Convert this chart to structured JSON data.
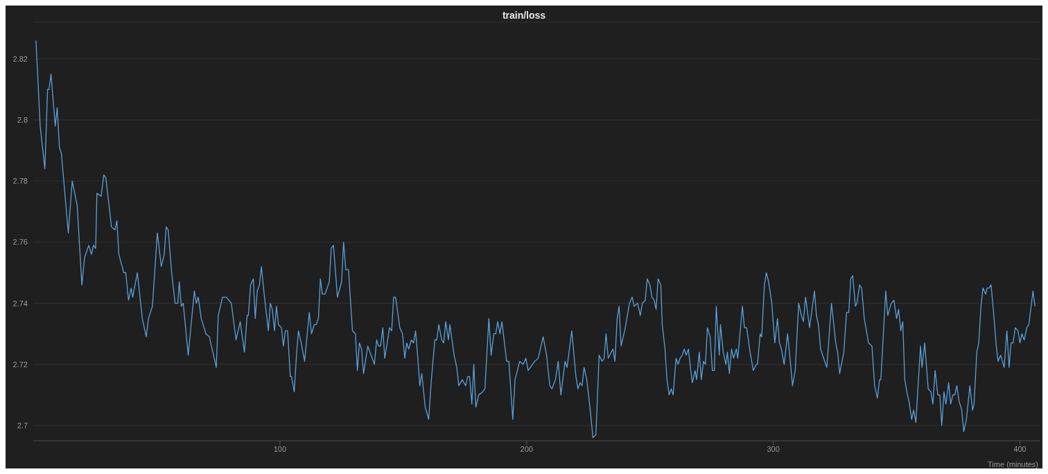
{
  "chart_data": {
    "type": "line",
    "title": "train/loss",
    "xlabel": "Time (minutes)",
    "x": [
      1.1,
      2.8,
      4.7,
      5.8,
      6.4,
      7.2,
      8.9,
      9.7,
      10.6,
      11.4,
      14.2,
      15.8,
      17.8,
      19.7,
      20.8,
      22.5,
      23.6,
      24.4,
      25.3,
      25.8,
      27.5,
      28.6,
      29.4,
      30.3,
      31.7,
      33.1,
      33.9,
      34.7,
      36.7,
      37.5,
      38.6,
      39.7,
      40.3,
      42.2,
      44.2,
      45.8,
      46.7,
      48.3,
      50.3,
      51.9,
      53.1,
      53.9,
      54.7,
      56.1,
      57.5,
      58.6,
      59.2,
      60.0,
      60.8,
      62.8,
      65.3,
      66.1,
      66.9,
      68.1,
      70.0,
      71.4,
      74.2,
      75.0,
      76.7,
      77.5,
      78.3,
      80.3,
      82.2,
      83.9,
      85.6,
      86.7,
      87.2,
      88.1,
      89.2,
      90.0,
      90.8,
      91.7,
      92.5,
      93.6,
      95.3,
      96.1,
      96.9,
      97.8,
      98.6,
      99.4,
      100.6,
      101.4,
      102.2,
      103.1,
      104.2,
      104.7,
      105.8,
      106.7,
      107.5,
      108.6,
      110.0,
      111.9,
      112.8,
      113.9,
      114.7,
      115.6,
      116.4,
      117.2,
      118.3,
      120.0,
      120.8,
      121.7,
      123.3,
      125.0,
      125.8,
      126.7,
      127.8,
      129.4,
      130.6,
      131.4,
      132.2,
      133.1,
      133.9,
      135.6,
      138.3,
      139.2,
      140.0,
      140.8,
      141.7,
      142.5,
      143.3,
      144.4,
      145.3,
      146.1,
      146.9,
      148.6,
      149.7,
      150.6,
      151.4,
      152.2,
      153.3,
      154.2,
      155.0,
      155.8,
      156.7,
      157.5,
      158.9,
      160.3,
      161.4,
      162.8,
      163.6,
      164.4,
      165.6,
      166.4,
      167.2,
      168.3,
      168.9,
      170.6,
      171.7,
      172.5,
      173.9,
      175.3,
      176.1,
      176.9,
      177.8,
      178.6,
      179.4,
      180.6,
      182.2,
      183.1,
      184.7,
      185.6,
      186.7,
      187.5,
      188.3,
      189.2,
      190.0,
      191.9,
      192.8,
      194.4,
      195.3,
      197.2,
      198.6,
      199.7,
      200.6,
      203.3,
      204.7,
      206.7,
      208.1,
      209.4,
      210.3,
      211.7,
      212.8,
      213.9,
      215.6,
      216.4,
      218.3,
      220.0,
      220.8,
      221.7,
      222.5,
      223.3,
      224.4,
      225.8,
      226.9,
      228.1,
      229.4,
      230.6,
      231.4,
      232.2,
      233.1,
      235.0,
      235.8,
      236.7,
      237.5,
      238.3,
      240.0,
      241.7,
      242.8,
      243.6,
      245.0,
      246.1,
      246.9,
      248.1,
      248.9,
      250.0,
      250.8,
      251.7,
      252.5,
      253.3,
      254.4,
      255.0,
      256.1,
      256.9,
      257.8,
      258.6,
      259.4,
      260.6,
      261.4,
      262.2,
      263.1,
      263.9,
      264.7,
      265.6,
      266.4,
      267.2,
      268.3,
      268.9,
      270.0,
      270.8,
      271.7,
      272.5,
      273.3,
      274.4,
      275.3,
      276.1,
      276.9,
      278.1,
      278.6,
      279.7,
      280.8,
      281.4,
      282.2,
      283.1,
      283.9,
      285.0,
      285.6,
      287.5,
      288.3,
      289.2,
      290.6,
      291.9,
      293.1,
      293.6,
      294.7,
      295.3,
      296.4,
      297.2,
      298.1,
      299.4,
      300.6,
      301.7,
      302.5,
      303.3,
      304.4,
      305.8,
      306.9,
      307.8,
      308.9,
      310.3,
      311.4,
      312.2,
      313.1,
      314.7,
      316.7,
      317.5,
      318.3,
      319.2,
      320.0,
      321.7,
      323.6,
      324.4,
      325.3,
      326.1,
      326.9,
      328.6,
      329.7,
      330.6,
      331.4,
      332.2,
      333.3,
      333.9,
      335.0,
      335.8,
      336.9,
      338.6,
      340.0,
      341.1,
      342.2,
      343.1,
      343.6,
      345.6,
      346.4,
      347.8,
      348.9,
      350.0,
      350.8,
      351.7,
      352.5,
      353.3,
      354.4,
      355.0,
      356.1,
      356.9,
      357.8,
      359.7,
      360.3,
      361.4,
      362.8,
      363.9,
      364.7,
      365.6,
      366.7,
      367.5,
      368.3,
      369.2,
      370.0,
      371.1,
      371.9,
      372.8,
      373.6,
      374.4,
      375.3,
      376.4,
      377.2,
      378.3,
      379.7,
      380.8,
      381.4,
      382.5,
      383.3,
      384.2,
      385.0,
      386.1,
      386.7,
      387.5,
      388.3,
      389.4,
      390.3,
      391.1,
      392.2,
      393.6,
      394.7,
      395.6,
      396.4,
      397.2,
      398.1,
      399.2,
      400.0,
      400.8,
      401.7,
      402.8,
      403.6,
      405.3,
      406.1
    ],
    "series": [
      {
        "color": "#5aa2dc",
        "values": [
          2.826,
          2.798,
          2.784,
          2.81,
          2.81,
          2.815,
          2.798,
          2.804,
          2.791,
          2.789,
          2.763,
          2.78,
          2.772,
          2.746,
          2.755,
          2.759,
          2.756,
          2.759,
          2.758,
          2.776,
          2.775,
          2.782,
          2.781,
          2.775,
          2.765,
          2.764,
          2.767,
          2.756,
          2.75,
          2.75,
          2.741,
          2.745,
          2.742,
          2.75,
          2.735,
          2.729,
          2.735,
          2.739,
          2.763,
          2.752,
          2.756,
          2.765,
          2.764,
          2.75,
          2.74,
          2.74,
          2.747,
          2.739,
          2.74,
          2.723,
          2.744,
          2.74,
          2.742,
          2.735,
          2.73,
          2.729,
          2.719,
          2.736,
          2.742,
          2.742,
          2.742,
          2.74,
          2.728,
          2.734,
          2.724,
          2.736,
          2.736,
          2.746,
          2.748,
          2.735,
          2.744,
          2.746,
          2.752,
          2.743,
          2.731,
          2.74,
          2.738,
          2.731,
          2.739,
          2.733,
          2.732,
          2.726,
          2.731,
          2.731,
          2.716,
          2.716,
          2.711,
          2.723,
          2.731,
          2.727,
          2.721,
          2.737,
          2.73,
          2.733,
          2.733,
          2.735,
          2.748,
          2.743,
          2.743,
          2.747,
          2.758,
          2.759,
          2.742,
          2.747,
          2.76,
          2.751,
          2.751,
          2.731,
          2.73,
          2.718,
          2.727,
          2.725,
          2.717,
          2.726,
          2.72,
          2.728,
          2.726,
          2.726,
          2.732,
          2.722,
          2.726,
          2.732,
          2.731,
          2.742,
          2.742,
          2.732,
          2.73,
          2.722,
          2.727,
          2.725,
          2.728,
          2.727,
          2.731,
          2.723,
          2.713,
          2.717,
          2.706,
          2.702,
          2.715,
          2.728,
          2.728,
          2.733,
          2.728,
          2.727,
          2.734,
          2.728,
          2.733,
          2.723,
          2.719,
          2.713,
          2.715,
          2.713,
          2.716,
          2.716,
          2.707,
          2.72,
          2.706,
          2.71,
          2.711,
          2.712,
          2.735,
          2.723,
          2.73,
          2.73,
          2.734,
          2.73,
          2.734,
          2.721,
          2.721,
          2.702,
          2.715,
          2.721,
          2.72,
          2.722,
          2.718,
          2.721,
          2.722,
          2.729,
          2.723,
          2.713,
          2.712,
          2.715,
          2.721,
          2.71,
          2.721,
          2.719,
          2.731,
          2.716,
          2.712,
          2.714,
          2.713,
          2.719,
          2.715,
          2.705,
          2.696,
          2.697,
          2.723,
          2.721,
          2.722,
          2.73,
          2.722,
          2.725,
          2.721,
          2.735,
          2.739,
          2.726,
          2.732,
          2.74,
          2.742,
          2.739,
          2.74,
          2.736,
          2.74,
          2.741,
          2.748,
          2.746,
          2.742,
          2.741,
          2.738,
          2.748,
          2.746,
          2.733,
          2.725,
          2.715,
          2.71,
          2.712,
          2.71,
          2.722,
          2.72,
          2.722,
          2.723,
          2.725,
          2.723,
          2.725,
          2.719,
          2.714,
          2.718,
          2.715,
          2.724,
          2.715,
          2.721,
          2.72,
          2.732,
          2.729,
          2.718,
          2.718,
          2.739,
          2.723,
          2.733,
          2.724,
          2.72,
          2.724,
          2.717,
          2.725,
          2.722,
          2.725,
          2.722,
          2.739,
          2.732,
          2.732,
          2.724,
          2.718,
          2.72,
          2.72,
          2.73,
          2.729,
          2.746,
          2.75,
          2.747,
          2.74,
          2.727,
          2.735,
          2.727,
          2.725,
          2.72,
          2.73,
          2.721,
          2.713,
          2.718,
          2.74,
          2.736,
          2.734,
          2.742,
          2.732,
          2.744,
          2.736,
          2.733,
          2.725,
          2.723,
          2.719,
          2.74,
          2.734,
          2.727,
          2.724,
          2.717,
          2.724,
          2.737,
          2.737,
          2.748,
          2.749,
          2.739,
          2.74,
          2.746,
          2.745,
          2.735,
          2.727,
          2.726,
          2.713,
          2.709,
          2.715,
          2.715,
          2.744,
          2.736,
          2.74,
          2.741,
          2.735,
          2.738,
          2.731,
          2.734,
          2.715,
          2.71,
          2.708,
          2.702,
          2.705,
          2.701,
          2.726,
          2.719,
          2.727,
          2.712,
          2.711,
          2.707,
          2.718,
          2.71,
          2.71,
          2.7,
          2.711,
          2.707,
          2.714,
          2.707,
          2.71,
          2.71,
          2.713,
          2.708,
          2.705,
          2.698,
          2.702,
          2.713,
          2.705,
          2.707,
          2.724,
          2.727,
          2.739,
          2.745,
          2.743,
          2.745,
          2.745,
          2.746,
          2.736,
          2.727,
          2.721,
          2.723,
          2.719,
          2.731,
          2.719,
          2.727,
          2.727,
          2.732,
          2.731,
          2.727,
          2.73,
          2.728,
          2.732,
          2.733,
          2.744,
          2.739
        ]
      }
    ],
    "xlim": [
      0,
      408
    ],
    "xticks": [
      100,
      200,
      300,
      400
    ],
    "ylim": [
      2.695,
      2.832
    ],
    "yticks": [
      2.7,
      2.72,
      2.74,
      2.76,
      2.78,
      2.8,
      2.82
    ],
    "grid": "y",
    "marker": "none",
    "line_style": "solid"
  }
}
